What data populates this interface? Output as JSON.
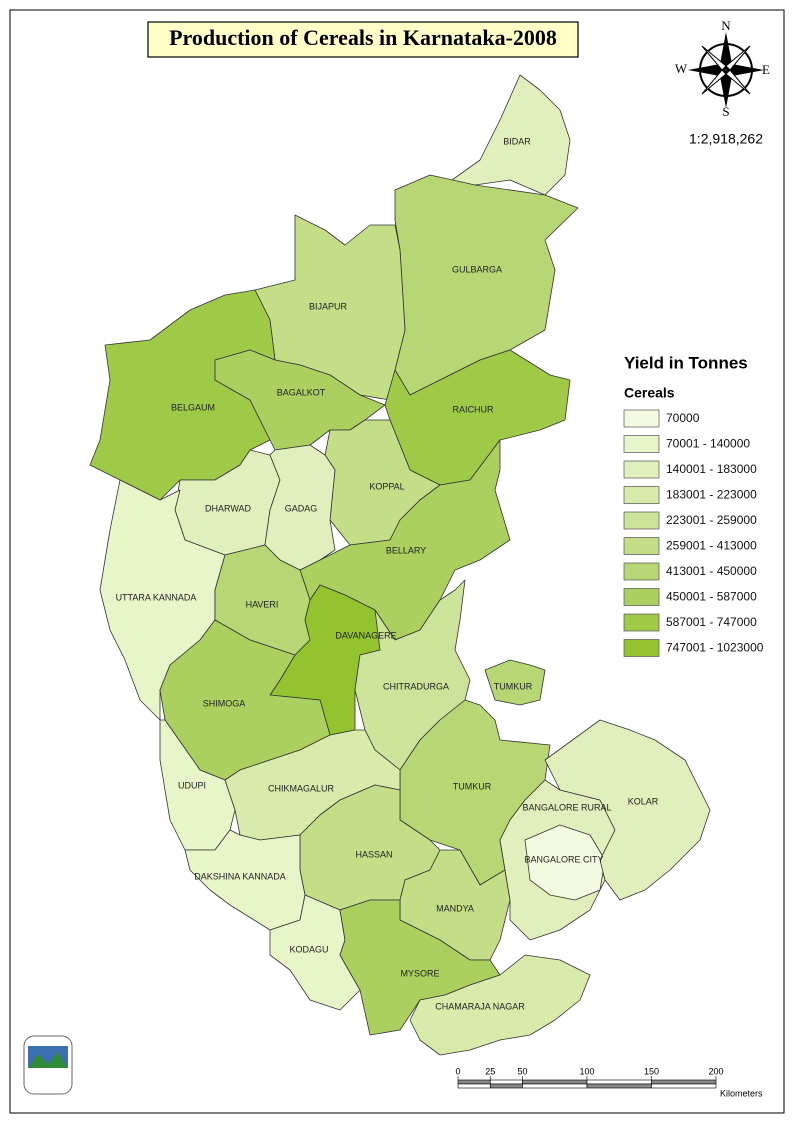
{
  "title": "Production of Cereals in Karnataka-2008",
  "compass": {
    "north": "N",
    "east": "E",
    "south": "S",
    "west": "W"
  },
  "scale_ratio": "1:2,918,262",
  "legend": {
    "title": "Yield in Tonnes",
    "subtitle": "Cereals",
    "classes": [
      {
        "label": "70000",
        "color": "#f3fae0"
      },
      {
        "label": "70001 - 140000",
        "color": "#e8f5c8"
      },
      {
        "label": "140001 - 183000",
        "color": "#e0efbb"
      },
      {
        "label": "183001 - 223000",
        "color": "#d8ebab"
      },
      {
        "label": "223001 - 259000",
        "color": "#cce39a"
      },
      {
        "label": "259001 - 413000",
        "color": "#c3de87"
      },
      {
        "label": "413001 - 450000",
        "color": "#b7d774"
      },
      {
        "label": "450001 - 587000",
        "color": "#abd05f"
      },
      {
        "label": "587001 - 747000",
        "color": "#9fca48"
      },
      {
        "label": "747001 - 1023000",
        "color": "#93c32e"
      }
    ]
  },
  "districts": [
    {
      "label": "BIDAR",
      "color": "#e0efbb"
    },
    {
      "label": "GULBARGA",
      "color": "#b7d774"
    },
    {
      "label": "BIJAPUR",
      "color": "#c3de87"
    },
    {
      "label": "BELGAUM",
      "color": "#9fca48"
    },
    {
      "label": "BAGALKOT",
      "color": "#abd05f"
    },
    {
      "label": "RAICHUR",
      "color": "#9fca48"
    },
    {
      "label": "KOPPAL",
      "color": "#c3de87"
    },
    {
      "label": "BELLARY",
      "color": "#abd05f"
    },
    {
      "label": "DHARWAD",
      "color": "#e0efbb"
    },
    {
      "label": "GADAG",
      "color": "#e0efbb"
    },
    {
      "label": "UTTARA KANNADA",
      "color": "#e8f5c8"
    },
    {
      "label": "HAVERI",
      "color": "#b7d774"
    },
    {
      "label": "DAVANAGERE",
      "color": "#93c32e"
    },
    {
      "label": "SHIMOGA",
      "color": "#abd05f"
    },
    {
      "label": "CHITRADURGA",
      "color": "#cce39a"
    },
    {
      "label": "TUMKUR",
      "color": "#b7d774"
    },
    {
      "label": "UDUPI",
      "color": "#e8f5c8"
    },
    {
      "label": "CHIKMAGALUR",
      "color": "#d8ebab"
    },
    {
      "label": "HASSAN",
      "color": "#c3de87"
    },
    {
      "label": "DAKSHINA KANNADA",
      "color": "#e8f5c8"
    },
    {
      "label": "KODAGU",
      "color": "#e8f5c8"
    },
    {
      "label": "MANDYA",
      "color": "#c3de87"
    },
    {
      "label": "MYSORE",
      "color": "#abd05f"
    },
    {
      "label": "CHAMARAJA NAGAR",
      "color": "#d8ebab"
    },
    {
      "label": "BANGALORE RURAL",
      "color": "#e0efbb"
    },
    {
      "label": "BANGALORE CITY",
      "color": "#f3fae0"
    },
    {
      "label": "KOLAR",
      "color": "#e0efbb"
    }
  ],
  "scale_bar": {
    "ticks": [
      0,
      25,
      50,
      100,
      150,
      200
    ],
    "unit": "Kilometers"
  }
}
